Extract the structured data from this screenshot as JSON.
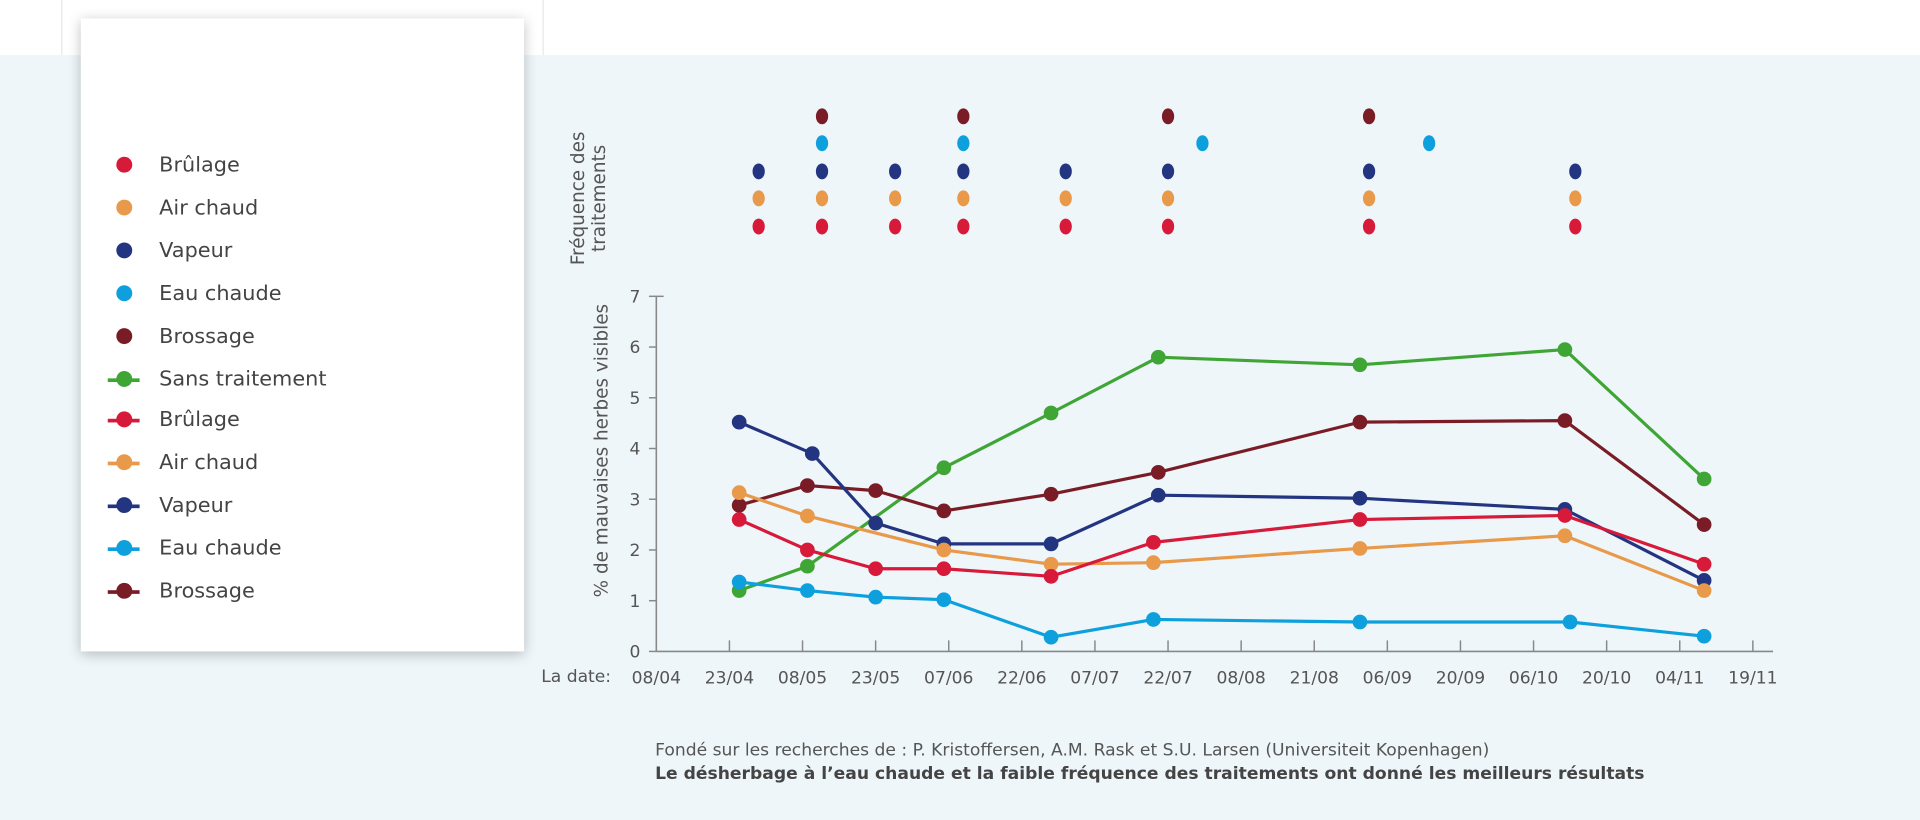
{
  "legend": {
    "treatment_items": [
      {
        "label": "Brûlage",
        "color": "#d7193a"
      },
      {
        "label": "Air chaud",
        "color": "#e8994a"
      },
      {
        "label": "Vapeur",
        "color": "#233580"
      },
      {
        "label": "Eau chaude",
        "color": "#0ea0dd"
      },
      {
        "label": "Brossage",
        "color": "#7a1c26"
      }
    ],
    "line_items": [
      {
        "label": "Sans traitement",
        "color": "#3fa535"
      },
      {
        "label": "Brûlage",
        "color": "#d7193a"
      },
      {
        "label": "Air chaud",
        "color": "#e8994a"
      },
      {
        "label": "Vapeur",
        "color": "#233580"
      },
      {
        "label": "Eau chaude",
        "color": "#0ea0dd"
      },
      {
        "label": "Brossage",
        "color": "#7a1c26"
      }
    ]
  },
  "chart_data": {
    "type": "line",
    "xlabel": "La date:",
    "ylabel": "% de mauvaises herbes visibles",
    "x_ticks": [
      "08/04",
      "23/04",
      "08/05",
      "23/05",
      "07/06",
      "22/06",
      "07/07",
      "22/07",
      "08/08",
      "21/08",
      "06/09",
      "20/09",
      "06/10",
      "20/10",
      "04/11",
      "19/11"
    ],
    "y_ticks": [
      0,
      1,
      2,
      3,
      4,
      5,
      6,
      7
    ],
    "ylim": [
      0,
      7
    ],
    "grid": false,
    "series": [
      {
        "name": "Sans traitement",
        "color": "#3fa535",
        "points": [
          [
            "25/04",
            1.2
          ],
          [
            "09/05",
            1.68
          ],
          [
            "06/06",
            3.62
          ],
          [
            "28/06",
            4.7
          ],
          [
            "20/07",
            5.8
          ],
          [
            "31/08",
            5.65
          ],
          [
            "12/10",
            5.95
          ],
          [
            "09/11",
            3.4
          ]
        ]
      },
      {
        "name": "Brossage",
        "color": "#7a1c26",
        "points": [
          [
            "25/04",
            2.88
          ],
          [
            "09/05",
            3.27
          ],
          [
            "23/05",
            3.17
          ],
          [
            "06/06",
            2.77
          ],
          [
            "28/06",
            3.1
          ],
          [
            "20/07",
            3.53
          ],
          [
            "31/08",
            4.52
          ],
          [
            "12/10",
            4.55
          ],
          [
            "09/11",
            2.5
          ]
        ]
      },
      {
        "name": "Vapeur",
        "color": "#233580",
        "points": [
          [
            "25/04",
            4.52
          ],
          [
            "10/05",
            3.9
          ],
          [
            "23/05",
            2.53
          ],
          [
            "06/06",
            2.12
          ],
          [
            "28/06",
            2.12
          ],
          [
            "20/07",
            3.08
          ],
          [
            "31/08",
            3.02
          ],
          [
            "12/10",
            2.8
          ],
          [
            "09/11",
            1.4
          ]
        ]
      },
      {
        "name": "Air chaud",
        "color": "#e8994a",
        "points": [
          [
            "25/04",
            3.13
          ],
          [
            "09/05",
            2.67
          ],
          [
            "06/06",
            2.0
          ],
          [
            "28/06",
            1.72
          ],
          [
            "19/07",
            1.75
          ],
          [
            "31/08",
            2.03
          ],
          [
            "12/10",
            2.28
          ],
          [
            "09/11",
            1.2
          ]
        ]
      },
      {
        "name": "Brûlage",
        "color": "#d7193a",
        "points": [
          [
            "25/04",
            2.6
          ],
          [
            "09/05",
            2.0
          ],
          [
            "23/05",
            1.63
          ],
          [
            "06/06",
            1.63
          ],
          [
            "28/06",
            1.48
          ],
          [
            "19/07",
            2.15
          ],
          [
            "31/08",
            2.6
          ],
          [
            "12/10",
            2.68
          ],
          [
            "09/11",
            1.72
          ]
        ]
      },
      {
        "name": "Eau chaude",
        "color": "#0ea0dd",
        "points": [
          [
            "25/04",
            1.37
          ],
          [
            "09/05",
            1.2
          ],
          [
            "23/05",
            1.07
          ],
          [
            "06/06",
            1.02
          ],
          [
            "28/06",
            0.28
          ],
          [
            "19/07",
            0.63
          ],
          [
            "31/08",
            0.58
          ],
          [
            "13/10",
            0.58
          ],
          [
            "09/11",
            0.3
          ]
        ]
      }
    ],
    "treatment_frequency": {
      "title": [
        "Fréquence des",
        "traitements"
      ],
      "rows": [
        {
          "name": "Brossage",
          "color": "#7a1c26",
          "dates": [
            "12/05",
            "10/06",
            "22/07",
            "02/09"
          ]
        },
        {
          "name": "Eau chaude",
          "color": "#0ea0dd",
          "dates": [
            "12/05",
            "10/06",
            "30/07",
            "14/09"
          ]
        },
        {
          "name": "Vapeur",
          "color": "#233580",
          "dates": [
            "29/04",
            "12/05",
            "27/05",
            "10/06",
            "01/07",
            "22/07",
            "02/09",
            "14/10"
          ]
        },
        {
          "name": "Air chaud",
          "color": "#e8994a",
          "dates": [
            "29/04",
            "12/05",
            "27/05",
            "10/06",
            "01/07",
            "22/07",
            "02/09",
            "14/10"
          ]
        },
        {
          "name": "Brûlage",
          "color": "#d7193a",
          "dates": [
            "29/04",
            "12/05",
            "27/05",
            "10/06",
            "01/07",
            "22/07",
            "02/09",
            "14/10"
          ]
        }
      ]
    }
  },
  "footer": {
    "source": "Fondé sur les recherches de : P. Kristoffersen, A.M. Rask et S.U. Larsen (Universiteit Kopenhagen)",
    "conclusion": "Le désherbage à l’eau chaude et la faible fréquence des traitements ont donné les meilleurs résultats"
  }
}
